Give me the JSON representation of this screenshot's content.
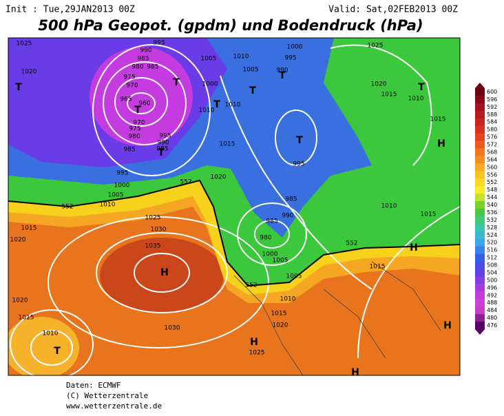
{
  "header": {
    "init": "Init : Tue,29JAN2013 00Z",
    "valid": "Valid: Sat,02FEB2013 00Z",
    "title": "500 hPa Geopot. (gpdm) und Bodendruck (hPa)"
  },
  "colorbar": {
    "labels": [
      600,
      596,
      592,
      588,
      584,
      580,
      576,
      572,
      568,
      564,
      560,
      556,
      552,
      548,
      544,
      540,
      536,
      532,
      528,
      524,
      520,
      516,
      512,
      508,
      504,
      500,
      496,
      492,
      488,
      484,
      480,
      476
    ]
  },
  "map_labels": [
    "1025",
    "1020",
    "T",
    "995",
    "990",
    "985",
    "980",
    "985",
    "975",
    "970",
    "965",
    "960",
    "T",
    "T",
    "970",
    "975",
    "980",
    "985",
    "995",
    "990",
    "985",
    "T",
    "1005",
    "1000",
    "1010",
    "T",
    "1010",
    "1010",
    "1005",
    "T",
    "1000",
    "995",
    "990",
    "T",
    "T",
    "995",
    "1015",
    "1020",
    "995",
    "1000",
    "1005",
    "1010",
    "552",
    "552",
    "1015",
    "1020",
    "1025",
    "1030",
    "1035",
    "H",
    "985",
    "990",
    "985",
    "980",
    "1000",
    "1005",
    "552",
    "1005",
    "1010",
    "1015",
    "1020",
    "552",
    "1025",
    "1020",
    "1015",
    "T",
    "1010",
    "1015",
    "H",
    "1010",
    "1015",
    "H",
    "1015",
    "1020",
    "1015",
    "1010",
    "T",
    "1030",
    "H",
    "1025",
    "H",
    "H"
  ],
  "footer": {
    "source": "Daten: ECMWF",
    "copyright": "(C) Wetterzentrale",
    "url": "www.wetterzentrale.de"
  }
}
